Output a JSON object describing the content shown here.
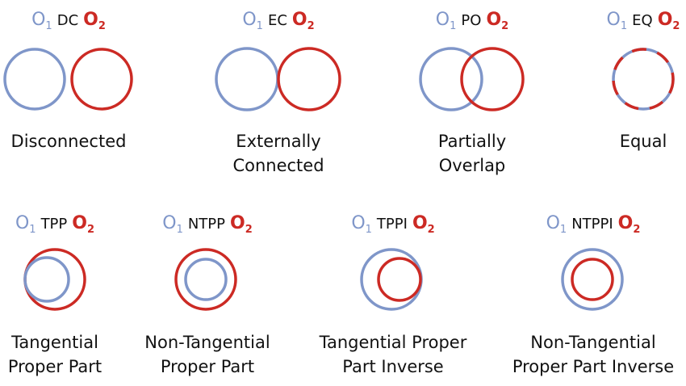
{
  "relations": [
    {
      "id": "dc",
      "o1": "O",
      "o1_sub": "1",
      "rel": "DC",
      "o2": "O",
      "o2_sub": "2",
      "label": [
        "Disconnected"
      ]
    },
    {
      "id": "ec",
      "o1": "O",
      "o1_sub": "1",
      "rel": "EC",
      "o2": "O",
      "o2_sub": "2",
      "label": [
        "Externally",
        "Connected"
      ]
    },
    {
      "id": "po",
      "o1": "O",
      "o1_sub": "1",
      "rel": "PO",
      "o2": "O",
      "o2_sub": "2",
      "label": [
        "Partially",
        "Overlap"
      ]
    },
    {
      "id": "eq",
      "o1": "O",
      "o1_sub": "1",
      "rel": "EQ",
      "o2": "O",
      "o2_sub": "2",
      "label": [
        "Equal"
      ]
    },
    {
      "id": "tpp",
      "o1": "O",
      "o1_sub": "1",
      "rel": "TPP",
      "o2": "O",
      "o2_sub": "2",
      "label": [
        "Tangential",
        "Proper Part"
      ]
    },
    {
      "id": "ntpp",
      "o1": "O",
      "o1_sub": "1",
      "rel": "NTPP",
      "o2": "O",
      "o2_sub": "2",
      "label": [
        "Non-Tangential",
        "Proper Part"
      ]
    },
    {
      "id": "tppi",
      "o1": "O",
      "o1_sub": "1",
      "rel": "TPPI",
      "o2": "O",
      "o2_sub": "2",
      "label": [
        "Tangential Proper",
        "Part Inverse"
      ]
    },
    {
      "id": "ntppi",
      "o1": "O",
      "o1_sub": "1",
      "rel": "NTPPI",
      "o2": "O",
      "o2_sub": "2",
      "label": [
        "Non-Tangential",
        "Proper Part Inverse"
      ]
    }
  ],
  "colors": {
    "o1": "#7f96c9",
    "o2": "#cc2a24"
  }
}
